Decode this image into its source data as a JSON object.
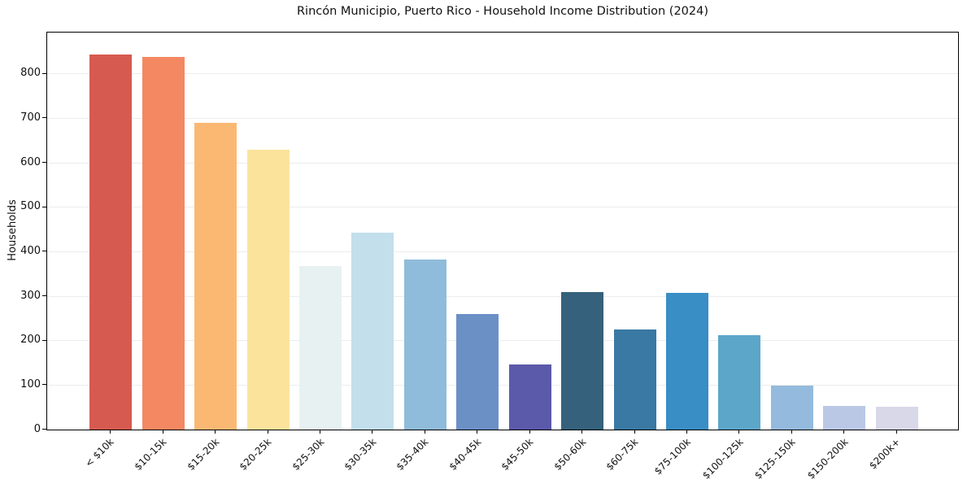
{
  "chart_data": {
    "type": "bar",
    "title": "Rincón Municipio, Puerto Rico - Household Income Distribution (2024)",
    "xlabel": "",
    "ylabel": "Households",
    "categories": [
      "< $10k",
      "$10-15k",
      "$15-20k",
      "$20-25k",
      "$25-30k",
      "$30-35k",
      "$35-40k",
      "$40-45k",
      "$45-50k",
      "$50-60k",
      "$60-75k",
      "$75-100k",
      "$100-125k",
      "$125-150k",
      "$150-200k",
      "$200k+"
    ],
    "values": [
      843,
      839,
      690,
      630,
      367,
      442,
      383,
      259,
      147,
      310,
      225,
      308,
      212,
      98,
      53,
      51
    ],
    "bar_colors": [
      "#d65a50",
      "#f48862",
      "#fab873",
      "#fce39c",
      "#e7f1f2",
      "#c2dfeb",
      "#8fbcda",
      "#6b90c6",
      "#5b59aa",
      "#35617c",
      "#3979a4",
      "#398ec5",
      "#5ca6ca",
      "#94badd",
      "#bac8e6",
      "#d8d8e9"
    ],
    "yticks": [
      0,
      100,
      200,
      300,
      400,
      500,
      600,
      700,
      800
    ],
    "ylim": [
      0,
      893
    ],
    "grid": "horizontal",
    "grid_color": "#ececec",
    "spine_color": "#000000",
    "background_color": "#ffffff",
    "legend": "none",
    "xtick_rotation_deg": 45
  }
}
